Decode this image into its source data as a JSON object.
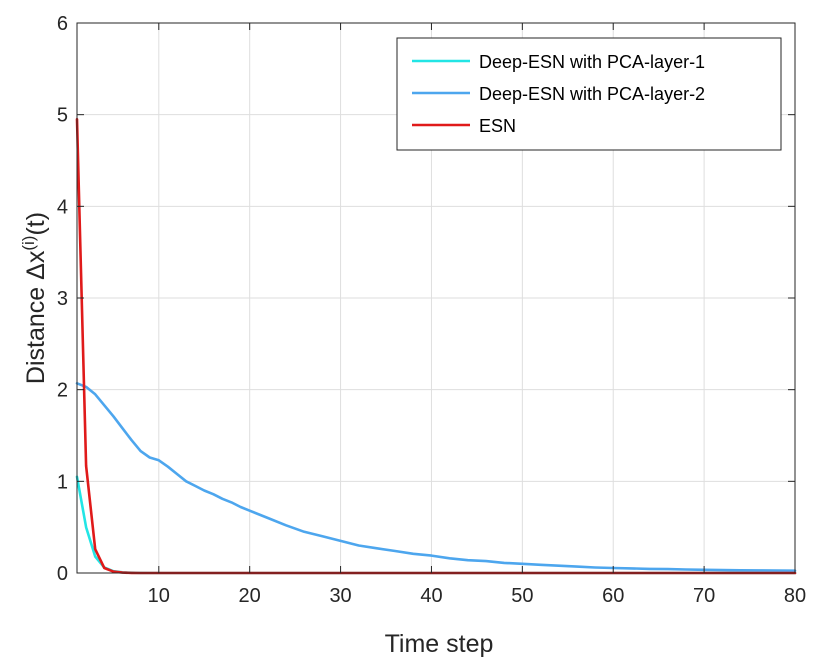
{
  "chart_data": {
    "type": "line",
    "xlabel": "Time step",
    "ylabel": {
      "prefix": "Distance Δx",
      "superscript": "(i)",
      "suffix": "(t)"
    },
    "xlim": [
      1,
      80
    ],
    "ylim": [
      0,
      6
    ],
    "xticks": [
      10,
      20,
      30,
      40,
      50,
      60,
      70,
      80
    ],
    "yticks": [
      0,
      1,
      2,
      3,
      4,
      5,
      6
    ],
    "grid": true,
    "legend_position": "top-right",
    "series": [
      {
        "name": "Deep-ESN with PCA-layer-1",
        "color": "#22e5e5",
        "x": [
          1,
          2,
          3,
          4,
          5,
          6,
          7,
          8,
          10,
          15,
          20,
          30,
          40,
          50,
          60,
          70,
          80
        ],
        "y": [
          1.05,
          0.5,
          0.18,
          0.06,
          0.02,
          0.008,
          0.003,
          0.001,
          0,
          0,
          0,
          0,
          0,
          0,
          0,
          0,
          0
        ]
      },
      {
        "name": "Deep-ESN with PCA-layer-2",
        "color": "#4da6ee",
        "x": [
          1,
          2,
          3,
          4,
          5,
          6,
          7,
          8,
          9,
          10,
          11,
          12,
          13,
          14,
          15,
          16,
          17,
          18,
          19,
          20,
          22,
          24,
          26,
          28,
          30,
          32,
          34,
          36,
          38,
          40,
          42,
          44,
          46,
          48,
          50,
          52,
          54,
          56,
          58,
          60,
          62,
          64,
          66,
          68,
          70,
          72,
          74,
          76,
          78,
          80
        ],
        "y": [
          2.07,
          2.03,
          1.95,
          1.83,
          1.71,
          1.58,
          1.45,
          1.33,
          1.26,
          1.23,
          1.16,
          1.08,
          1.0,
          0.95,
          0.9,
          0.86,
          0.81,
          0.77,
          0.72,
          0.68,
          0.6,
          0.52,
          0.45,
          0.4,
          0.35,
          0.3,
          0.27,
          0.24,
          0.21,
          0.19,
          0.16,
          0.14,
          0.13,
          0.11,
          0.1,
          0.09,
          0.08,
          0.07,
          0.06,
          0.055,
          0.05,
          0.045,
          0.042,
          0.038,
          0.035,
          0.032,
          0.03,
          0.028,
          0.026,
          0.025
        ]
      },
      {
        "name": "ESN",
        "color": "#e01a1a",
        "x": [
          1,
          2,
          3,
          4,
          5,
          6,
          7,
          8,
          10,
          15,
          20,
          30,
          40,
          50,
          60,
          70,
          80
        ],
        "y": [
          4.95,
          1.17,
          0.26,
          0.055,
          0.015,
          0.004,
          0.001,
          0,
          0,
          0,
          0,
          0,
          0,
          0,
          0,
          0,
          0
        ]
      }
    ]
  }
}
